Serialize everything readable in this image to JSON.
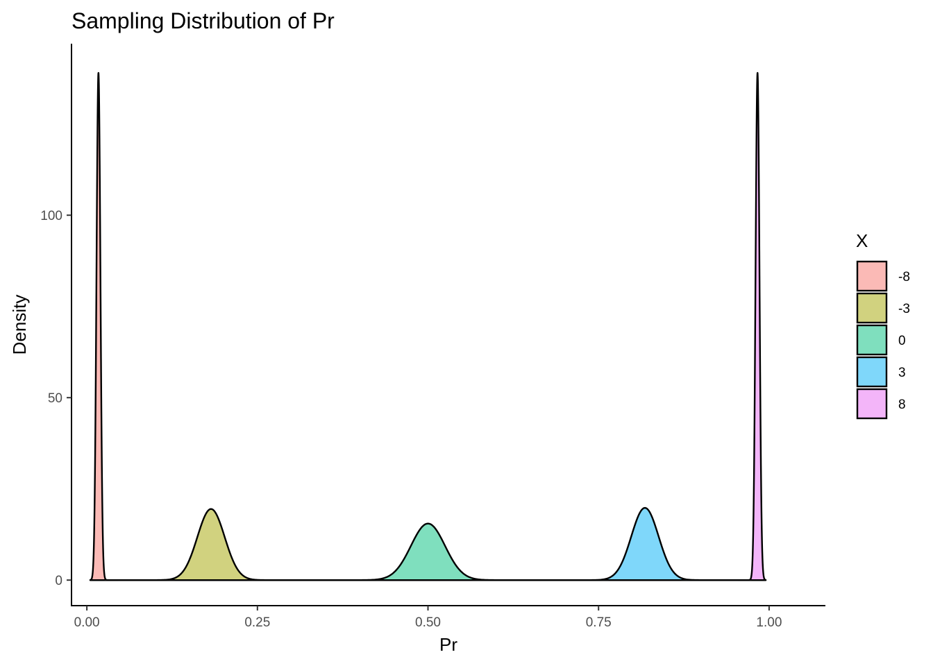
{
  "chart_data": {
    "type": "area",
    "subtype": "density",
    "title": "Sampling Distribution of Pr",
    "xlabel": "Pr",
    "ylabel": "Density",
    "xlim": [
      -0.0225,
      1.0825
    ],
    "ylim": [
      -7,
      147
    ],
    "x_ticks": [
      {
        "value": 0.0,
        "label": "0.00"
      },
      {
        "value": 0.25,
        "label": "0.25"
      },
      {
        "value": 0.5,
        "label": "0.50"
      },
      {
        "value": 0.75,
        "label": "0.75"
      },
      {
        "value": 1.0,
        "label": "1.00"
      }
    ],
    "y_ticks": [
      {
        "value": 0,
        "label": "0"
      },
      {
        "value": 50,
        "label": "50"
      },
      {
        "value": 100,
        "label": "100"
      }
    ],
    "grid": false,
    "legend": {
      "title": "X",
      "position": "right"
    },
    "series": [
      {
        "name": "-8",
        "color": "#F8766D",
        "mean": 0.017,
        "sd": 0.0029,
        "peak_density": 139,
        "x_range": [
          0.005,
          0.045
        ]
      },
      {
        "name": "-3",
        "color": "#A3A500",
        "mean": 0.182,
        "sd": 0.02,
        "peak_density": 19.5,
        "x_range": [
          0.005,
          0.995
        ]
      },
      {
        "name": "0",
        "color": "#00BF7D",
        "mean": 0.5,
        "sd": 0.025,
        "peak_density": 15.5,
        "x_range": [
          0.005,
          0.995
        ]
      },
      {
        "name": "3",
        "color": "#00B0F6",
        "mean": 0.818,
        "sd": 0.02,
        "peak_density": 19.8,
        "x_range": [
          0.005,
          0.995
        ]
      },
      {
        "name": "8",
        "color": "#E76BF3",
        "mean": 0.983,
        "sd": 0.0029,
        "peak_density": 139,
        "x_range": [
          0.955,
          0.995
        ]
      }
    ]
  }
}
